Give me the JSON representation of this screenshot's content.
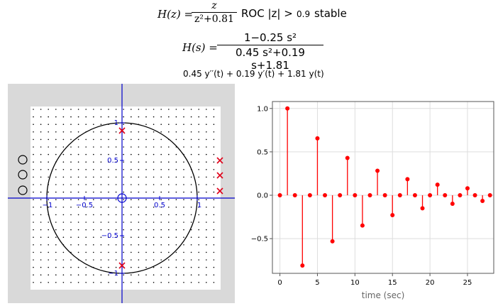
{
  "header": {
    "hz_lhs": "H(z) =",
    "hz_num": "z",
    "hz_den": "z²+0.81",
    "roc_label": "ROC |z| >",
    "roc_value": "0.9",
    "stability": "stable",
    "hs_lhs": "H(s) =",
    "hs_num": "1−0.25 s²",
    "hs_den": "0.45 s²+0.19 s+1.81",
    "ode": "0.45 y′′(t) + 0.19 y′(t) + 1.81 y(t)"
  },
  "pole_zero_plot": {
    "x_ticks": [
      "−1",
      "−0.5",
      "0.5",
      "1"
    ],
    "y_ticks": [
      "1",
      "0.5",
      "−0.5",
      "−1"
    ],
    "zeros": [
      [
        0,
        0
      ]
    ],
    "poles": [
      [
        0,
        0.9
      ],
      [
        0,
        -0.9
      ]
    ],
    "palette_zero_count": 3,
    "palette_pole_count": 3,
    "colors": {
      "axis": "#0000cc",
      "pole": "#e0001a",
      "circle": "#000000",
      "zero": "#0000cc"
    }
  },
  "chart_data": {
    "type": "stem",
    "x": [
      0,
      1,
      2,
      3,
      4,
      5,
      6,
      7,
      8,
      9,
      10,
      11,
      12,
      13,
      14,
      15,
      16,
      17,
      18,
      19,
      20,
      21,
      22,
      23,
      24,
      25,
      26,
      27,
      28
    ],
    "values": [
      0,
      1,
      0,
      -0.81,
      0,
      0.656,
      0,
      -0.531,
      0,
      0.43,
      0,
      -0.349,
      0,
      0.282,
      0,
      -0.229,
      0,
      0.185,
      0,
      -0.15,
      0,
      0.122,
      0,
      -0.098,
      0,
      0.08,
      0,
      -0.065,
      0
    ],
    "xlabel": "time (sec)",
    "ylabel": "",
    "x_ticks": [
      "0",
      "5",
      "10",
      "15",
      "20",
      "25"
    ],
    "y_ticks": [
      "1.0",
      "0.5",
      "0.0",
      "−0.5"
    ],
    "xlim": [
      -1,
      28.5
    ],
    "ylim": [
      -0.9,
      1.08
    ],
    "grid": true,
    "color": "#ff0000"
  }
}
